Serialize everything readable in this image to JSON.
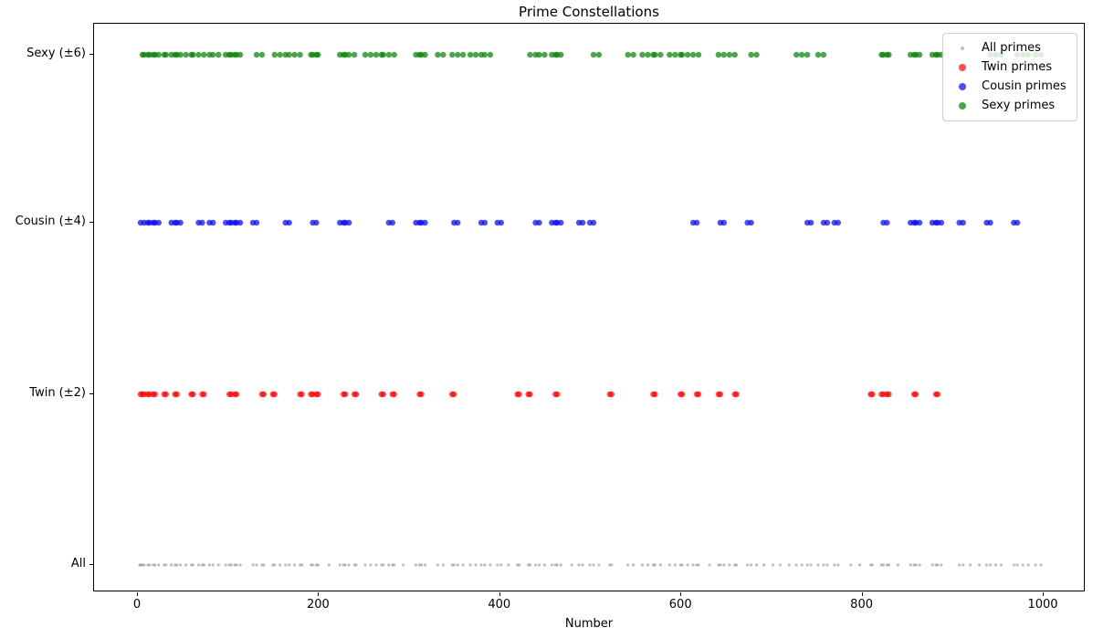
{
  "chart_data": {
    "type": "scatter",
    "title": "Prime Constellations",
    "xlabel": "Number",
    "xticks": [
      0,
      200,
      400,
      600,
      800,
      1000
    ],
    "xlim": [
      -50,
      1050
    ],
    "grid": false,
    "legend_position": "upper right",
    "rows_top_to_bottom": [
      "Sexy (±6)",
      "Cousin (±4)",
      "Twin (±2)",
      "All"
    ],
    "series": [
      {
        "name": "All primes",
        "row_label": "All",
        "row": 3,
        "color": "#808080",
        "alpha": 0.5,
        "marker_radius": 1.6,
        "legend_marker_diameter": 4,
        "values": [
          2,
          3,
          5,
          7,
          11,
          13,
          17,
          19,
          23,
          29,
          31,
          37,
          41,
          43,
          47,
          53,
          59,
          61,
          67,
          71,
          73,
          79,
          83,
          89,
          97,
          101,
          103,
          107,
          109,
          113,
          127,
          131,
          137,
          139,
          149,
          151,
          157,
          163,
          167,
          173,
          179,
          181,
          191,
          193,
          197,
          199,
          211,
          223,
          227,
          229,
          233,
          239,
          241,
          251,
          257,
          263,
          269,
          271,
          277,
          281,
          283,
          293,
          307,
          311,
          313,
          317,
          331,
          337,
          347,
          349,
          353,
          359,
          367,
          373,
          379,
          383,
          389,
          397,
          401,
          409,
          419,
          421,
          431,
          433,
          439,
          443,
          449,
          457,
          461,
          463,
          467,
          479,
          487,
          491,
          499,
          503,
          509,
          521,
          523,
          541,
          547,
          557,
          563,
          569,
          571,
          577,
          587,
          593,
          599,
          601,
          607,
          613,
          617,
          619,
          631,
          641,
          643,
          647,
          653,
          659,
          661,
          673,
          677,
          683,
          691,
          701,
          709,
          719,
          727,
          733,
          739,
          743,
          751,
          757,
          761,
          769,
          773,
          787,
          797,
          809,
          811,
          821,
          823,
          827,
          829,
          839,
          853,
          857,
          859,
          863,
          877,
          881,
          883,
          887,
          907,
          911,
          919,
          929,
          937,
          941,
          947,
          953,
          967,
          971,
          977,
          983,
          991,
          997
        ]
      },
      {
        "name": "Twin primes",
        "row_label": "Twin (±2)",
        "row": 2,
        "color": "#ff0000",
        "alpha": 0.7,
        "marker_radius": 3.2,
        "legend_marker_diameter": 8,
        "values": [
          3,
          5,
          7,
          11,
          13,
          17,
          19,
          29,
          31,
          41,
          43,
          59,
          61,
          71,
          73,
          101,
          103,
          107,
          109,
          137,
          139,
          149,
          151,
          179,
          181,
          191,
          193,
          197,
          199,
          227,
          229,
          239,
          241,
          269,
          271,
          281,
          283,
          311,
          313,
          347,
          349,
          419,
          421,
          431,
          433,
          461,
          463,
          521,
          523,
          569,
          571,
          599,
          601,
          617,
          619,
          641,
          643,
          659,
          661,
          809,
          811,
          821,
          823,
          827,
          829,
          857,
          859,
          881,
          883
        ]
      },
      {
        "name": "Cousin primes",
        "row_label": "Cousin (±4)",
        "row": 1,
        "color": "#0000ff",
        "alpha": 0.7,
        "marker_radius": 3.2,
        "legend_marker_diameter": 8,
        "values": [
          3,
          7,
          11,
          13,
          17,
          19,
          23,
          37,
          41,
          43,
          47,
          67,
          71,
          79,
          83,
          97,
          101,
          103,
          107,
          109,
          113,
          127,
          131,
          163,
          167,
          193,
          197,
          223,
          227,
          229,
          233,
          277,
          281,
          307,
          311,
          313,
          317,
          349,
          353,
          379,
          383,
          397,
          401,
          439,
          443,
          457,
          461,
          463,
          467,
          487,
          491,
          499,
          503,
          613,
          617,
          643,
          647,
          673,
          677,
          739,
          743,
          757,
          761,
          769,
          773,
          823,
          827,
          853,
          857,
          859,
          863,
          877,
          881,
          883,
          887,
          907,
          911,
          937,
          941,
          967,
          971
        ]
      },
      {
        "name": "Sexy primes",
        "row_label": "Sexy (±6)",
        "row": 0,
        "color": "#008000",
        "alpha": 0.7,
        "marker_radius": 3.2,
        "legend_marker_diameter": 8,
        "values": [
          5,
          7,
          11,
          13,
          17,
          19,
          23,
          29,
          31,
          37,
          41,
          43,
          47,
          53,
          59,
          61,
          67,
          73,
          79,
          83,
          89,
          97,
          101,
          103,
          107,
          109,
          113,
          131,
          137,
          151,
          157,
          163,
          167,
          173,
          179,
          191,
          193,
          197,
          199,
          223,
          227,
          229,
          233,
          239,
          251,
          257,
          263,
          269,
          271,
          277,
          283,
          307,
          311,
          313,
          317,
          331,
          337,
          347,
          353,
          359,
          367,
          373,
          379,
          383,
          389,
          433,
          439,
          443,
          449,
          457,
          461,
          463,
          467,
          503,
          509,
          541,
          547,
          557,
          563,
          569,
          571,
          577,
          587,
          593,
          599,
          601,
          607,
          613,
          619,
          641,
          647,
          653,
          659,
          677,
          683,
          727,
          733,
          739,
          751,
          757,
          821,
          823,
          827,
          829,
          853,
          857,
          859,
          863,
          877,
          881,
          883,
          887,
          941,
          947,
          953,
          971,
          977,
          983,
          991,
          997
        ]
      }
    ]
  }
}
